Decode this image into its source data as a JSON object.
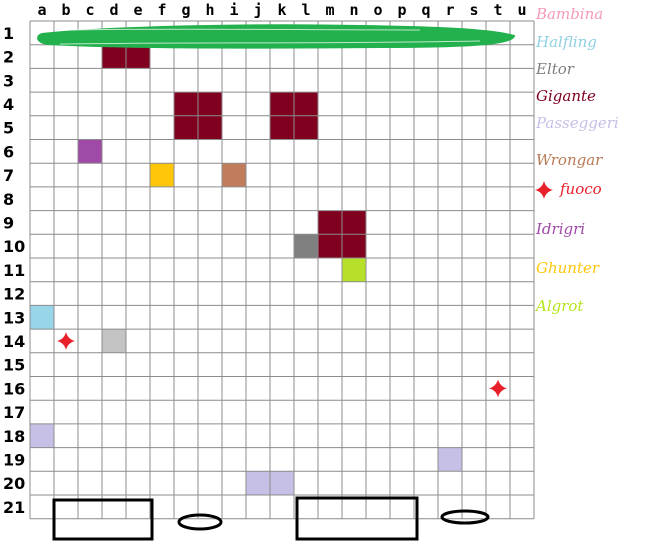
{
  "columns": [
    "a",
    "b",
    "c",
    "d",
    "e",
    "f",
    "g",
    "h",
    "i",
    "j",
    "k",
    "l",
    "m",
    "n",
    "o",
    "p",
    "q",
    "r",
    "s",
    "t",
    "u"
  ],
  "rows": [
    "1",
    "2",
    "3",
    "4",
    "5",
    "6",
    "7",
    "8",
    "9",
    "10",
    "11",
    "12",
    "13",
    "14",
    "15",
    "16",
    "17",
    "18",
    "19",
    "20",
    "21"
  ],
  "colors": {
    "grid_line": "#8c8c8c",
    "gigante": "#800020",
    "eltor": "#808080",
    "halfling": "#99d5e8",
    "passeggeri": "#c6c0e6",
    "wrongar": "#c17d5b",
    "fuoco": "#e8202a",
    "idrigri": "#a04aa8",
    "ghunter": "#ffc60a",
    "algrot": "#b7e02a",
    "bambina": "#f59ab6",
    "scribble": "#22b14c",
    "neutral": "#c3c3c3"
  },
  "legend": [
    {
      "label": "Bambina",
      "color": "#f59ab6"
    },
    {
      "label": "Halfling",
      "color": "#8fd0e3"
    },
    {
      "label": "Eltor",
      "color": "#7f7f7f"
    },
    {
      "label": "Gigante",
      "color": "#800020"
    },
    {
      "label": "Passeggeri",
      "color": "#c6c0e6"
    },
    {
      "label": "Wrongar",
      "color": "#b97a57"
    },
    {
      "label": "fuoco",
      "color": "#e8202a",
      "icon": "fire-cross-icon"
    },
    {
      "label": "Idrigri",
      "color": "#a04aa8"
    },
    {
      "label": "Ghunter",
      "color": "#ffc60a"
    },
    {
      "label": "Algrot",
      "color": "#b5e61d"
    }
  ],
  "tokens": [
    {
      "type": "gigante",
      "col": "d",
      "row": 2,
      "w": 2,
      "h": 1
    },
    {
      "type": "gigante",
      "col": "g",
      "row": 4,
      "w": 2,
      "h": 2
    },
    {
      "type": "gigante",
      "col": "k",
      "row": 4,
      "w": 2,
      "h": 2
    },
    {
      "type": "gigante",
      "col": "m",
      "row": 9,
      "w": 2,
      "h": 2
    },
    {
      "type": "eltor",
      "col": "l",
      "row": 10,
      "w": 1,
      "h": 1
    },
    {
      "type": "algrot",
      "col": "n",
      "row": 11,
      "w": 1,
      "h": 1
    },
    {
      "type": "idrigri",
      "col": "c",
      "row": 6,
      "w": 1,
      "h": 1
    },
    {
      "type": "ghunter",
      "col": "f",
      "row": 7,
      "w": 1,
      "h": 1
    },
    {
      "type": "wrongar",
      "col": "i",
      "row": 7,
      "w": 1,
      "h": 1
    },
    {
      "type": "halfling",
      "col": "a",
      "row": 13,
      "w": 1,
      "h": 1
    },
    {
      "type": "neutral",
      "col": "d",
      "row": 14,
      "w": 1,
      "h": 1
    },
    {
      "type": "passeggeri",
      "col": "a",
      "row": 18,
      "w": 1,
      "h": 1
    },
    {
      "type": "passeggeri",
      "col": "r",
      "row": 19,
      "w": 1,
      "h": 1
    },
    {
      "type": "passeggeri",
      "col": "j",
      "row": 20,
      "w": 2,
      "h": 1
    }
  ],
  "fires": [
    {
      "col": "b",
      "row": 14
    },
    {
      "col": "t",
      "row": 16
    }
  ]
}
